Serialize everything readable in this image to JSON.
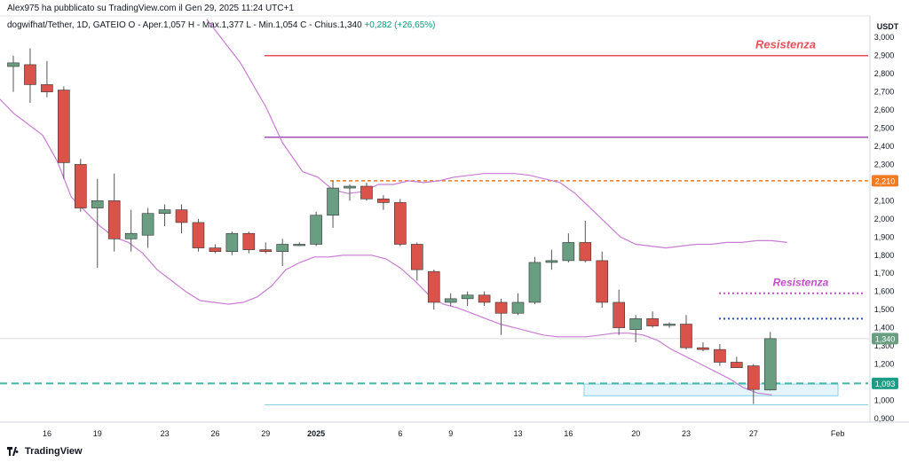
{
  "header": {
    "publisher": "Alex975 ha pubblicato su TradingView.com il Gen 29, 2025 11:24 UTC+1",
    "symbol": "dogwifhat/Tether, 1D, GATEIO",
    "ohlc": "O - Aper.1,057  H - Max.1,377  L - Min.1,054  C - Chius.1,340",
    "change": "+0,282 (+26,65%)",
    "currency": "USDT"
  },
  "footer": {
    "brand": "TradingView",
    "logo_icon": "tradingview-logo-icon"
  },
  "colors": {
    "up": "#6a9e83",
    "down": "#d9534a",
    "wick": "#555555",
    "band": "#c77dd1",
    "resistance_red": "#e8505b",
    "resistance_purple": "#a34fb6",
    "dotted_purple": "#c050c8",
    "dotted_blue": "#2a4db5",
    "dashed_orange": "#f07b22",
    "support_dashed": "#3fb8a5",
    "support_zone": "#9dd6ee",
    "support_line": "#8fd0e0"
  },
  "chart_data": {
    "type": "candlestick",
    "interval": "1D",
    "ylim": [
      0.88,
      3.1
    ],
    "y_ticks": [
      "0,900",
      "1,000",
      "1,100",
      "1,200",
      "1,300",
      "1,400",
      "1,500",
      "1,600",
      "1,700",
      "1,800",
      "1,900",
      "2,000",
      "2,100",
      "2,200",
      "2,300",
      "2,400",
      "2,500",
      "2,600",
      "2,700",
      "2,800",
      "2,900",
      "3,000"
    ],
    "x_ticks": [
      {
        "date": "2025-12-16",
        "label": "16"
      },
      {
        "date": "2025-12-19",
        "label": "19"
      },
      {
        "date": "2025-12-23",
        "label": "23"
      },
      {
        "date": "2025-12-26",
        "label": "26"
      },
      {
        "date": "2025-12-29",
        "label": "29"
      },
      {
        "date": "2025-01-01",
        "label": "2025",
        "bold": true
      },
      {
        "date": "2025-01-06",
        "label": "6"
      },
      {
        "date": "2025-01-09",
        "label": "9"
      },
      {
        "date": "2025-01-13",
        "label": "13"
      },
      {
        "date": "2025-01-16",
        "label": "16"
      },
      {
        "date": "2025-01-20",
        "label": "20"
      },
      {
        "date": "2025-01-23",
        "label": "23"
      },
      {
        "date": "2025-01-27",
        "label": "27"
      },
      {
        "date": "2025-02-01",
        "label": "Feb"
      }
    ],
    "candles": [
      {
        "o": 2.84,
        "h": 2.9,
        "l": 2.7,
        "c": 2.86
      },
      {
        "o": 2.85,
        "h": 2.94,
        "l": 2.64,
        "c": 2.74
      },
      {
        "o": 2.74,
        "h": 2.87,
        "l": 2.67,
        "c": 2.7
      },
      {
        "o": 2.71,
        "h": 2.73,
        "l": 2.22,
        "c": 2.31
      },
      {
        "o": 2.3,
        "h": 2.33,
        "l": 2.04,
        "c": 2.06
      },
      {
        "o": 2.06,
        "h": 2.22,
        "l": 1.73,
        "c": 2.1
      },
      {
        "o": 2.1,
        "h": 2.25,
        "l": 1.82,
        "c": 1.89
      },
      {
        "o": 1.89,
        "h": 2.05,
        "l": 1.82,
        "c": 1.92
      },
      {
        "o": 1.91,
        "h": 2.06,
        "l": 1.84,
        "c": 2.03
      },
      {
        "o": 2.03,
        "h": 2.08,
        "l": 1.96,
        "c": 2.05
      },
      {
        "o": 2.05,
        "h": 2.08,
        "l": 1.92,
        "c": 1.98
      },
      {
        "o": 1.98,
        "h": 2.0,
        "l": 1.82,
        "c": 1.84
      },
      {
        "o": 1.84,
        "h": 1.86,
        "l": 1.81,
        "c": 1.82
      },
      {
        "o": 1.82,
        "h": 1.93,
        "l": 1.8,
        "c": 1.92
      },
      {
        "o": 1.92,
        "h": 1.93,
        "l": 1.81,
        "c": 1.83
      },
      {
        "o": 1.83,
        "h": 1.87,
        "l": 1.81,
        "c": 1.82
      },
      {
        "o": 1.82,
        "h": 1.89,
        "l": 1.74,
        "c": 1.86
      },
      {
        "o": 1.86,
        "h": 1.87,
        "l": 1.85,
        "c": 1.86
      },
      {
        "o": 1.86,
        "h": 2.04,
        "l": 1.85,
        "c": 2.02
      },
      {
        "o": 2.02,
        "h": 2.21,
        "l": 1.95,
        "c": 2.17
      },
      {
        "o": 2.17,
        "h": 2.19,
        "l": 2.1,
        "c": 2.18
      },
      {
        "o": 2.18,
        "h": 2.2,
        "l": 2.1,
        "c": 2.11
      },
      {
        "o": 2.11,
        "h": 2.13,
        "l": 2.05,
        "c": 2.09
      },
      {
        "o": 2.09,
        "h": 2.11,
        "l": 1.85,
        "c": 1.86
      },
      {
        "o": 1.86,
        "h": 1.87,
        "l": 1.66,
        "c": 1.72
      },
      {
        "o": 1.71,
        "h": 1.72,
        "l": 1.5,
        "c": 1.54
      },
      {
        "o": 1.54,
        "h": 1.59,
        "l": 1.52,
        "c": 1.56
      },
      {
        "o": 1.56,
        "h": 1.6,
        "l": 1.52,
        "c": 1.58
      },
      {
        "o": 1.58,
        "h": 1.6,
        "l": 1.52,
        "c": 1.54
      },
      {
        "o": 1.54,
        "h": 1.56,
        "l": 1.36,
        "c": 1.48
      },
      {
        "o": 1.48,
        "h": 1.59,
        "l": 1.47,
        "c": 1.54
      },
      {
        "o": 1.54,
        "h": 1.79,
        "l": 1.53,
        "c": 1.76
      },
      {
        "o": 1.76,
        "h": 1.83,
        "l": 1.72,
        "c": 1.77
      },
      {
        "o": 1.77,
        "h": 1.92,
        "l": 1.76,
        "c": 1.87
      },
      {
        "o": 1.87,
        "h": 1.99,
        "l": 1.76,
        "c": 1.77
      },
      {
        "o": 1.77,
        "h": 1.82,
        "l": 1.51,
        "c": 1.54
      },
      {
        "o": 1.54,
        "h": 1.61,
        "l": 1.36,
        "c": 1.4
      },
      {
        "o": 1.39,
        "h": 1.47,
        "l": 1.32,
        "c": 1.45
      },
      {
        "o": 1.45,
        "h": 1.49,
        "l": 1.4,
        "c": 1.41
      },
      {
        "o": 1.42,
        "h": 1.43,
        "l": 1.4,
        "c": 1.42
      },
      {
        "o": 1.42,
        "h": 1.47,
        "l": 1.28,
        "c": 1.29
      },
      {
        "o": 1.29,
        "h": 1.32,
        "l": 1.27,
        "c": 1.28
      },
      {
        "o": 1.28,
        "h": 1.31,
        "l": 1.19,
        "c": 1.21
      },
      {
        "o": 1.21,
        "h": 1.24,
        "l": 1.18,
        "c": 1.18
      },
      {
        "o": 1.19,
        "h": 1.2,
        "l": 0.98,
        "c": 1.06
      },
      {
        "o": 1.057,
        "h": 1.377,
        "l": 1.054,
        "c": 1.34
      }
    ],
    "bollinger_upper": [
      2.26,
      2.23,
      2.16,
      2.14,
      2.15,
      2.19,
      2.19,
      2.21,
      2.2,
      2.21,
      2.23,
      2.24,
      2.25,
      2.25,
      2.25,
      2.24,
      2.22,
      2.2,
      2.14,
      2.06,
      1.98,
      1.9,
      1.86,
      1.85,
      1.84,
      1.85,
      1.86,
      1.86,
      1.87,
      1.87,
      1.88,
      1.88,
      1.87
    ],
    "bollinger_lower": [
      2.66,
      2.58,
      2.52,
      2.46,
      2.32,
      2.12,
      2.04,
      1.96,
      1.9,
      1.87,
      1.81,
      1.72,
      1.66,
      1.6,
      1.55,
      1.54,
      1.53,
      1.54,
      1.57,
      1.63,
      1.72,
      1.76,
      1.79,
      1.79,
      1.8,
      1.8,
      1.8,
      1.78,
      1.73,
      1.66,
      1.58,
      1.53,
      1.51,
      1.48,
      1.45,
      1.42,
      1.4,
      1.38,
      1.36,
      1.35,
      1.35,
      1.35,
      1.36,
      1.37,
      1.37,
      1.36,
      1.33,
      1.28,
      1.24,
      1.2,
      1.16,
      1.12,
      1.07,
      1.04,
      1.03
    ],
    "resistance_red": 2.9,
    "resistance_red_label": "Resistenza",
    "resistance_purple": 2.45,
    "dashed_orange": 2.21,
    "dotted_purple": 1.59,
    "dotted_purple_label": "Resistenza",
    "dotted_blue": 1.45,
    "support_dashed": 1.093,
    "support_zone": [
      1.025,
      1.09
    ],
    "support_line": 0.975,
    "last_price_line": 1.34,
    "price_tags": [
      {
        "value": 2.21,
        "label": "2,210",
        "color": "#f07b22"
      },
      {
        "value": 1.34,
        "label": "1,340",
        "color": "#6a9e83"
      },
      {
        "value": 1.093,
        "label": "1,093",
        "color": "#1b9e86"
      }
    ]
  }
}
